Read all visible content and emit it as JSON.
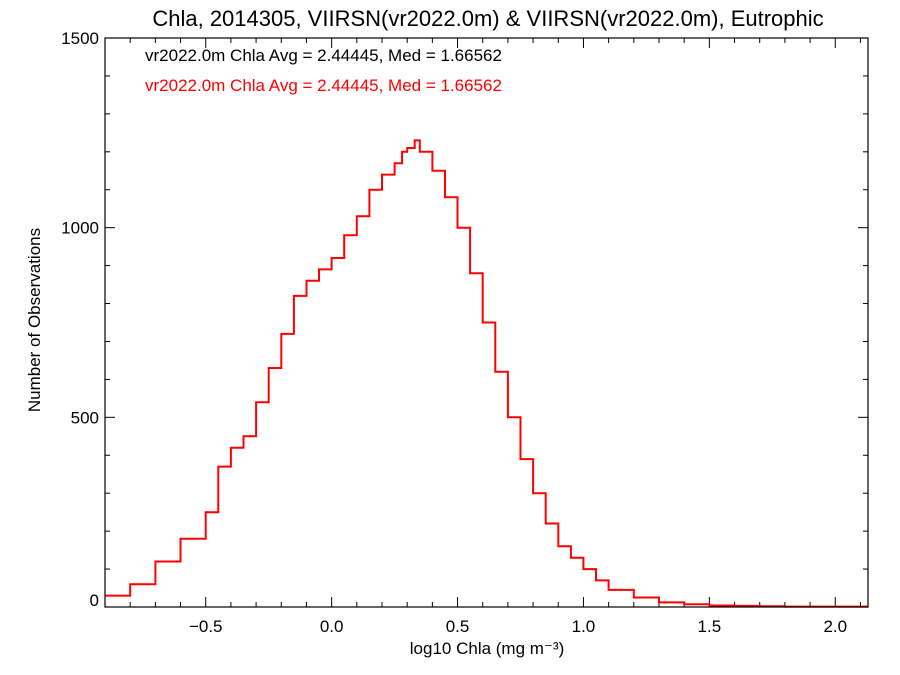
{
  "chart_data": {
    "type": "histogram-step",
    "title": "Chla, 2014305, VIIRSN(vr2022.0m) & VIIRSN(vr2022.0m), Eutrophic",
    "xlabel": "log10 Chla (mg m⁻³)",
    "ylabel": "Number of Observations",
    "xlim": [
      -0.9,
      2.13
    ],
    "ylim": [
      0,
      1500
    ],
    "x_ticks": [
      -0.5,
      0.0,
      0.5,
      1.0,
      1.5,
      2.0
    ],
    "x_tick_labels": [
      "−0.5",
      "0.0",
      "0.5",
      "1.0",
      "1.5",
      "2.0"
    ],
    "y_ticks": [
      0,
      500,
      1000,
      1500
    ],
    "y_tick_labels": [
      "0",
      "500",
      "1000",
      "1500"
    ],
    "grid": false,
    "annotations": [
      {
        "text": "vr2022.0m Chla Avg = 2.44445, Med = 1.66562",
        "color": "#000000"
      },
      {
        "text": "vr2022.0m Chla Avg = 2.44445, Med = 1.66562",
        "color": "#ff0000"
      }
    ],
    "series": [
      {
        "color": "#ff0000",
        "x": [
          -0.9,
          -0.8,
          -0.7,
          -0.6,
          -0.5,
          -0.45,
          -0.4,
          -0.35,
          -0.3,
          -0.25,
          -0.2,
          -0.15,
          -0.1,
          -0.05,
          0.0,
          0.05,
          0.1,
          0.15,
          0.2,
          0.25,
          0.28,
          0.3,
          0.33,
          0.35,
          0.4,
          0.45,
          0.5,
          0.55,
          0.6,
          0.65,
          0.7,
          0.75,
          0.8,
          0.85,
          0.9,
          0.95,
          1.0,
          1.05,
          1.1,
          1.2,
          1.3,
          1.4,
          1.5,
          1.6,
          1.7,
          1.8,
          1.9,
          2.0,
          2.13
        ],
        "y": [
          30,
          60,
          120,
          180,
          250,
          370,
          420,
          450,
          540,
          630,
          720,
          820,
          860,
          890,
          920,
          980,
          1030,
          1100,
          1140,
          1170,
          1200,
          1210,
          1230,
          1200,
          1150,
          1080,
          1000,
          880,
          750,
          620,
          500,
          390,
          300,
          220,
          160,
          130,
          100,
          70,
          45,
          25,
          12,
          7,
          4,
          3,
          2,
          1,
          1,
          1,
          1
        ]
      }
    ]
  }
}
